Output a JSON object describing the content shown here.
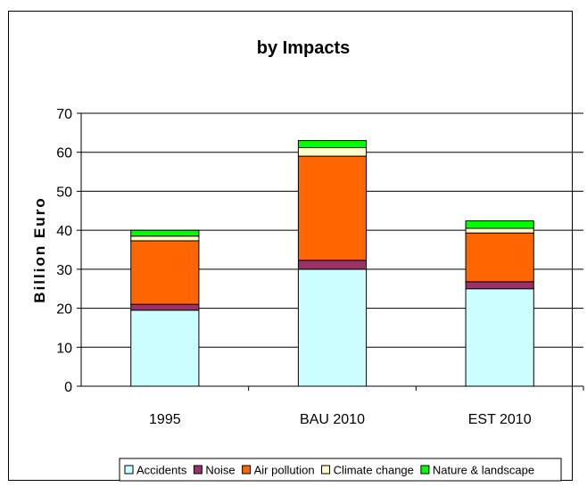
{
  "chart_data": {
    "type": "bar",
    "stacked": true,
    "title": "by Impacts",
    "xlabel": "",
    "ylabel": "Billion Euro",
    "ylim": [
      0,
      70
    ],
    "yticks": [
      "0",
      "10",
      "20",
      "30",
      "40",
      "50",
      "60",
      "70"
    ],
    "categories": [
      "1995",
      "BAU 2010",
      "EST 2010"
    ],
    "series": [
      {
        "name": "Accidents",
        "color": "#ccffff",
        "values": [
          19.5,
          30.0,
          25.0
        ]
      },
      {
        "name": "Noise",
        "color": "#993366",
        "values": [
          1.5,
          2.3,
          1.8
        ]
      },
      {
        "name": "Air pollution",
        "color": "#ff6600",
        "values": [
          16.3,
          26.7,
          12.5
        ]
      },
      {
        "name": "Climate change",
        "color": "#ffffcc",
        "values": [
          1.2,
          2.2,
          1.2
        ]
      },
      {
        "name": "Nature & landscape",
        "color": "#00ff00",
        "values": [
          1.5,
          1.8,
          1.9
        ]
      }
    ],
    "grid": true,
    "legend_position": "bottom"
  }
}
